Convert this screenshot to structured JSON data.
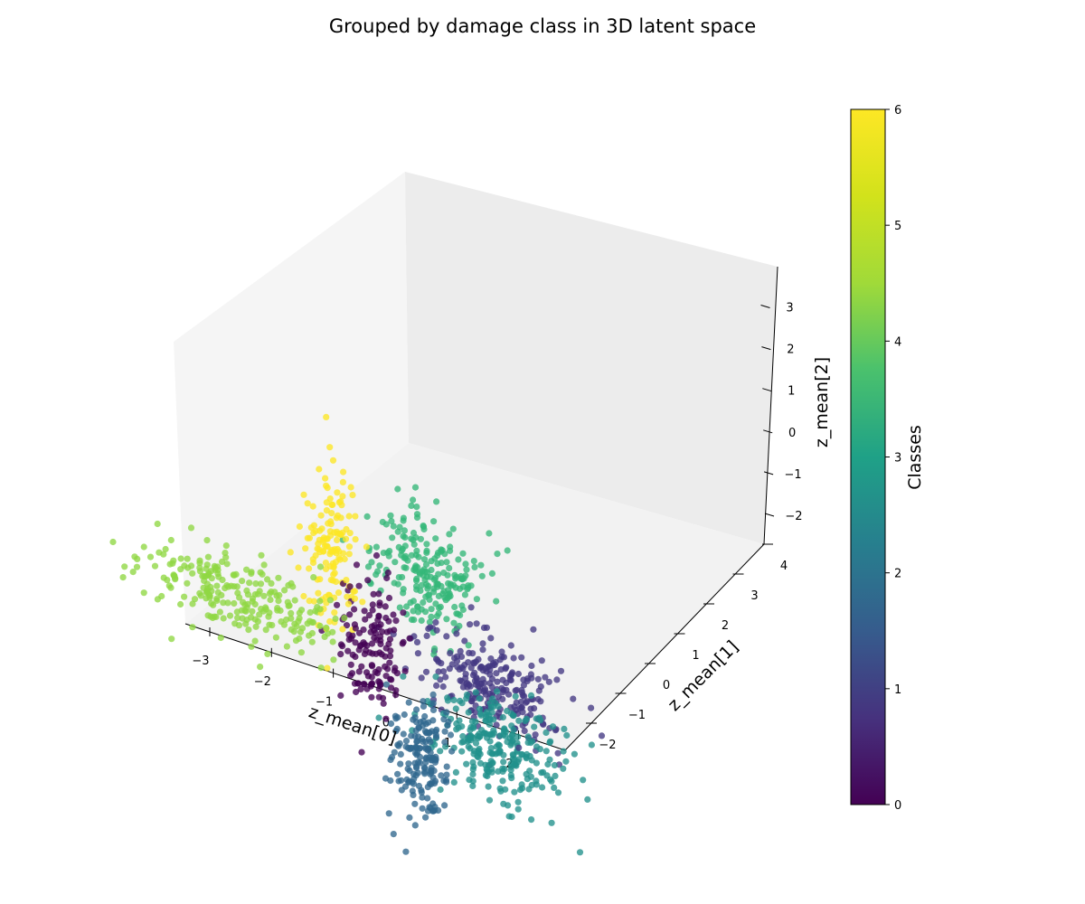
{
  "chart_data": {
    "type": "scatter",
    "projection": "3d",
    "title": "Grouped by damage class in 3D latent space",
    "xlabel": "z_mean[0]",
    "ylabel": "z_mean[1]",
    "zlabel": "z_mean[2]",
    "x_ticks": [
      "−3",
      "−2",
      "−1",
      "0",
      "1",
      "2"
    ],
    "y_ticks": [
      "−2",
      "−1",
      "0",
      "1",
      "2",
      "3",
      "4"
    ],
    "z_ticks": [
      "−2",
      "−1",
      "0",
      "1",
      "2",
      "3"
    ],
    "colorbar": {
      "label": "Classes",
      "range": [
        0,
        6
      ],
      "ticks": [
        "0",
        "1",
        "2",
        "3",
        "4",
        "5",
        "6"
      ],
      "colormap": "viridis"
    },
    "legend": "none",
    "grid": false,
    "series": [
      {
        "class": 0,
        "color": "#440154",
        "count": 140,
        "centroid": [
          0.4,
          1.5,
          0.2
        ],
        "spread": [
          0.25,
          0.25,
          0.75
        ]
      },
      {
        "class": 1,
        "color": "#443983",
        "count": 240,
        "centroid": [
          2.5,
          2.0,
          0.0
        ],
        "spread": [
          0.55,
          0.45,
          0.5
        ]
      },
      {
        "class": 2,
        "color": "#31688e",
        "count": 170,
        "centroid": [
          0.7,
          0.3,
          -1.6
        ],
        "spread": [
          0.2,
          0.3,
          0.75
        ]
      },
      {
        "class": 3,
        "color": "#21918c",
        "count": 260,
        "centroid": [
          2.0,
          0.5,
          -0.7
        ],
        "spread": [
          0.5,
          0.35,
          0.55
        ]
      },
      {
        "class": 4,
        "color": "#35b779",
        "count": 220,
        "centroid": [
          1.7,
          2.4,
          1.8
        ],
        "spread": [
          0.4,
          0.35,
          0.7
        ]
      },
      {
        "class": 5,
        "color": "#90d743",
        "count": 240,
        "centroid": [
          -1.8,
          1.4,
          0.4
        ],
        "spread": [
          0.8,
          0.35,
          0.45
        ]
      },
      {
        "class": 6,
        "color": "#fde725",
        "count": 140,
        "centroid": [
          -0.2,
          1.8,
          2.0
        ],
        "spread": [
          0.2,
          0.2,
          0.9
        ]
      }
    ]
  }
}
